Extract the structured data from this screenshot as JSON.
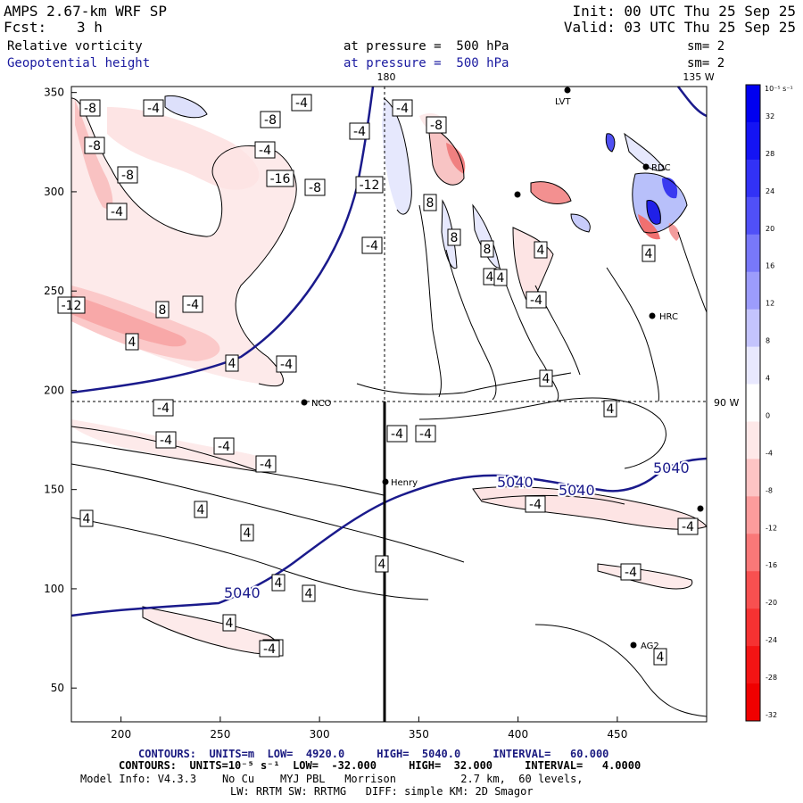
{
  "header": {
    "model": "AMPS 2.67-km WRF SP",
    "forecast_label": "Fcst:",
    "forecast_value": "3 h",
    "init": "Init: 00 UTC Thu 25 Sep 25",
    "valid": "Valid: 03 UTC Thu 25 Sep 25",
    "field1": "Relative vorticity",
    "field1_pressure": "at pressure =  500 hPa",
    "field1_sm": "sm= 2",
    "field2": "Geopotential height",
    "field2_pressure": "at pressure =  500 hPa",
    "field2_sm": "sm= 2"
  },
  "map": {
    "top_lon_180": "180",
    "top_lon_135w": "135 W",
    "side_lat_90w": "90 W",
    "stations": [
      {
        "name": "LVT",
        "label": "LVT"
      },
      {
        "name": "RDC",
        "label": "RDC"
      },
      {
        "name": "HRC",
        "label": "HRC"
      },
      {
        "name": "NCO",
        "label": "NCO"
      },
      {
        "name": "Henry",
        "label": "Henry"
      },
      {
        "name": "AG2",
        "label": "AG2"
      }
    ],
    "height_labels": [
      "5040",
      "5040",
      "5040",
      "5040"
    ],
    "vort_labels": [
      "-8",
      "-4",
      "-8",
      "-4",
      "-4",
      "-8",
      "-8",
      "-4",
      "-4",
      "-8",
      "-16",
      "-8",
      "-4",
      "-12",
      "-12",
      "8",
      "-4",
      "4",
      "4",
      "8",
      "4",
      "-4",
      "4",
      "8",
      "8",
      "4",
      "-4",
      "4",
      "-4",
      "4",
      "-4",
      "4",
      "-4",
      "-4",
      "-4",
      "-4",
      "-4",
      "4",
      "4",
      "4",
      "-4",
      "-4",
      "4",
      "4",
      "4",
      "-4",
      "4",
      "-4",
      "-4",
      "4"
    ]
  },
  "chart_data": {
    "type": "heatmap",
    "title": "Relative vorticity / Geopotential height at pressure = 500 hPa",
    "x_ticks": [
      "200",
      "250",
      "300",
      "350",
      "400",
      "450"
    ],
    "y_ticks": [
      "350",
      "300",
      "250",
      "200",
      "150",
      "100",
      "50"
    ],
    "x_range": [
      175,
      495
    ],
    "y_range": [
      33,
      353
    ],
    "colorbar": {
      "unit_label": "10⁻⁵ s⁻¹",
      "levels": [
        "32",
        "28",
        "24",
        "20",
        "16",
        "12",
        "8",
        "4",
        "0",
        "-4",
        "-8",
        "-12",
        "-16",
        "-20",
        "-24",
        "-28",
        "-32"
      ],
      "colors": [
        "#0000f0",
        "#1414f4",
        "#3232f6",
        "#5050f8",
        "#7878fa",
        "#9c9cfc",
        "#c4c4fd",
        "#e8e8fe",
        "#ffffff",
        "#fee8e8",
        "#fdc4c4",
        "#fc9c9c",
        "#fa7878",
        "#f85050",
        "#f63232",
        "#f41414",
        "#f00000"
      ]
    },
    "height_contours": {
      "units": "m",
      "low": "4920.0",
      "high": "5040.0",
      "interval": "60.000",
      "level": 5040
    },
    "vorticity_contours": {
      "units": "10⁻⁵ s⁻¹",
      "low": "-32.000",
      "high": "32.000",
      "interval": "4.0000"
    }
  },
  "footer": {
    "contours1": "CONTOURS:  UNITS=m  LOW=  4920.0     HIGH=  5040.0     INTERVAL=   60.000",
    "contours2": "CONTOURS:  UNITS=10⁻⁵ s⁻¹  LOW=  -32.000     HIGH=  32.000     INTERVAL=   4.0000",
    "model_info": "Model Info: V4.3.3    No Cu    MYJ PBL   Morrison          2.7 km,  60 levels,",
    "model_info2": "LW: RRTM SW: RRTMG   DIFF: simple KM: 2D Smagor"
  }
}
